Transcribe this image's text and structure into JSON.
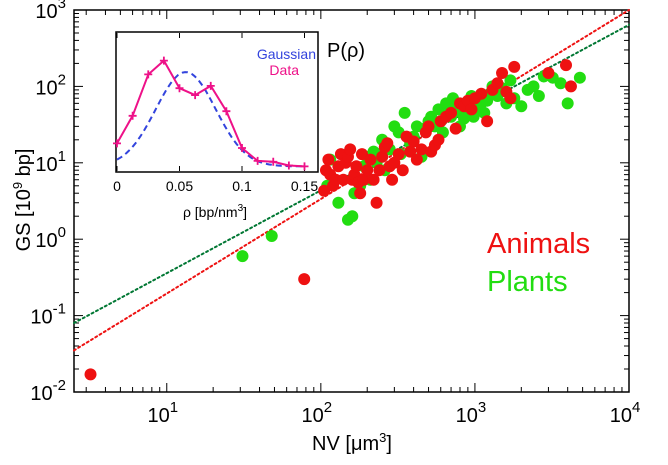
{
  "chart_data": [
    {
      "type": "scatter",
      "xscale": "log",
      "yscale": "log",
      "xlim": [
        2.5,
        10000
      ],
      "ylim": [
        0.01,
        1000
      ],
      "x_ticks": [
        {
          "base": "10",
          "exp": "1"
        },
        {
          "base": "10",
          "exp": "2"
        },
        {
          "base": "10",
          "exp": "3"
        },
        {
          "base": "10",
          "exp": "4"
        }
      ],
      "y_ticks": [
        {
          "base": "10",
          "exp": "-2"
        },
        {
          "base": "10",
          "exp": "-1"
        },
        {
          "base": "10",
          "exp": "0"
        },
        {
          "base": "10",
          "exp": "1"
        },
        {
          "base": "10",
          "exp": "2"
        },
        {
          "base": "10",
          "exp": "3"
        }
      ],
      "xlabel": {
        "pre": "NV [",
        "mu": "μ",
        "unit": "m",
        "sup": "3",
        "post": "]"
      },
      "ylabel": {
        "pre": "GS [10",
        "sup": "9",
        "post": " bp]"
      },
      "legend": {
        "placement": "right",
        "entries": [
          "Animals",
          "Plants"
        ]
      },
      "colors": {
        "Animals": "#ee1111",
        "Plants": "#22dd11"
      },
      "series": [
        {
          "name": "Animals",
          "points": [
            [
              3.2,
              0.017
            ],
            [
              78,
              0.3
            ],
            [
              105,
              4.3
            ],
            [
              108,
              8
            ],
            [
              112,
              11
            ],
            [
              115,
              7
            ],
            [
              120,
              5
            ],
            [
              125,
              6
            ],
            [
              130,
              9
            ],
            [
              135,
              13
            ],
            [
              140,
              6
            ],
            [
              145,
              10
            ],
            [
              150,
              12
            ],
            [
              155,
              15
            ],
            [
              160,
              6
            ],
            [
              165,
              7
            ],
            [
              170,
              9
            ],
            [
              175,
              5.5
            ],
            [
              180,
              4
            ],
            [
              185,
              13
            ],
            [
              190,
              6
            ],
            [
              200,
              8
            ],
            [
              210,
              11
            ],
            [
              220,
              6
            ],
            [
              230,
              3
            ],
            [
              240,
              8
            ],
            [
              250,
              12
            ],
            [
              260,
              16
            ],
            [
              270,
              18
            ],
            [
              280,
              9
            ],
            [
              290,
              6
            ],
            [
              300,
              10
            ],
            [
              320,
              13
            ],
            [
              340,
              8
            ],
            [
              360,
              22
            ],
            [
              380,
              14
            ],
            [
              400,
              19
            ],
            [
              420,
              11
            ],
            [
              450,
              15
            ],
            [
              480,
              25
            ],
            [
              500,
              30
            ],
            [
              520,
              14
            ],
            [
              550,
              17
            ],
            [
              580,
              20
            ],
            [
              600,
              35
            ],
            [
              650,
              40
            ],
            [
              700,
              45
            ],
            [
              750,
              28
            ],
            [
              800,
              60
            ],
            [
              850,
              55
            ],
            [
              900,
              65
            ],
            [
              950,
              50
            ],
            [
              1000,
              70
            ],
            [
              1100,
              80
            ],
            [
              1200,
              35
            ],
            [
              1300,
              90
            ],
            [
              1400,
              110
            ],
            [
              1500,
              150
            ],
            [
              1600,
              85
            ],
            [
              1700,
              70
            ],
            [
              1800,
              180
            ],
            [
              3000,
              150
            ],
            [
              3900,
              190
            ],
            [
              4200,
              100
            ]
          ]
        },
        {
          "name": "Plants",
          "points": [
            [
              31,
              0.6
            ],
            [
              48,
              1.1
            ],
            [
              110,
              5
            ],
            [
              115,
              11
            ],
            [
              130,
              3
            ],
            [
              150,
              1.8
            ],
            [
              160,
              2
            ],
            [
              165,
              4
            ],
            [
              170,
              6
            ],
            [
              180,
              5
            ],
            [
              190,
              9
            ],
            [
              200,
              12
            ],
            [
              210,
              6
            ],
            [
              220,
              14
            ],
            [
              230,
              10
            ],
            [
              240,
              13
            ],
            [
              250,
              20
            ],
            [
              260,
              8
            ],
            [
              280,
              15
            ],
            [
              300,
              30
            ],
            [
              320,
              25
            ],
            [
              330,
              13
            ],
            [
              350,
              45
            ],
            [
              380,
              18
            ],
            [
              400,
              22
            ],
            [
              420,
              30
            ],
            [
              450,
              12
            ],
            [
              470,
              28
            ],
            [
              500,
              35
            ],
            [
              520,
              40
            ],
            [
              550,
              30
            ],
            [
              580,
              50
            ],
            [
              600,
              35
            ],
            [
              620,
              25
            ],
            [
              650,
              60
            ],
            [
              680,
              45
            ],
            [
              700,
              40
            ],
            [
              720,
              70
            ],
            [
              760,
              55
            ],
            [
              800,
              30
            ],
            [
              820,
              45
            ],
            [
              850,
              38
            ],
            [
              880,
              60
            ],
            [
              900,
              55
            ],
            [
              950,
              75
            ],
            [
              980,
              40
            ],
            [
              1000,
              50
            ],
            [
              1050,
              70
            ],
            [
              1100,
              60
            ],
            [
              1150,
              45
            ],
            [
              1200,
              65
            ],
            [
              1250,
              80
            ],
            [
              1300,
              100
            ],
            [
              1400,
              75
            ],
            [
              1500,
              95
            ],
            [
              1600,
              60
            ],
            [
              1700,
              120
            ],
            [
              1800,
              70
            ],
            [
              2000,
              55
            ],
            [
              2200,
              90
            ],
            [
              2400,
              100
            ],
            [
              2600,
              75
            ],
            [
              2800,
              135
            ],
            [
              3200,
              130
            ],
            [
              3600,
              110
            ],
            [
              4000,
              60
            ],
            [
              4800,
              130
            ]
          ]
        }
      ],
      "fits": [
        {
          "color": "#ee1111",
          "style": "dotted",
          "from": [
            2.5,
            0.035
          ],
          "to": [
            10000,
            1000
          ]
        },
        {
          "color": "#007733",
          "style": "dotted",
          "from": [
            2.5,
            0.08
          ],
          "to": [
            10000,
            640
          ]
        }
      ]
    },
    {
      "type": "line",
      "title": {
        "text": "P(",
        "rho": "ρ",
        "close": ")"
      },
      "xlim": [
        0,
        0.16
      ],
      "ylim": [
        0,
        0.3
      ],
      "x_ticks": [
        "0",
        "0.05",
        "0.1",
        "0.15"
      ],
      "xlabel": {
        "rho": "ρ",
        "pre": " [bp/nm",
        "sup": "3",
        "post": "]"
      },
      "legend": {
        "placement": "top-right",
        "entries": [
          "Gaussian",
          "Data"
        ]
      },
      "colors": {
        "Gaussian": "#3344dd",
        "Data": "#ee1188"
      },
      "series": [
        {
          "name": "Data",
          "x": [
            0.0,
            0.0125,
            0.025,
            0.0375,
            0.05,
            0.0625,
            0.075,
            0.0875,
            0.1,
            0.1125,
            0.125,
            0.1375,
            0.15
          ],
          "y": [
            0.06,
            0.12,
            0.21,
            0.24,
            0.18,
            0.165,
            0.185,
            0.13,
            0.05,
            0.022,
            0.02,
            0.012,
            0.01
          ]
        },
        {
          "name": "Gaussian",
          "mean": 0.055,
          "sigma": 0.024,
          "amplitude": 0.205,
          "baseline": 0.01
        }
      ]
    }
  ]
}
